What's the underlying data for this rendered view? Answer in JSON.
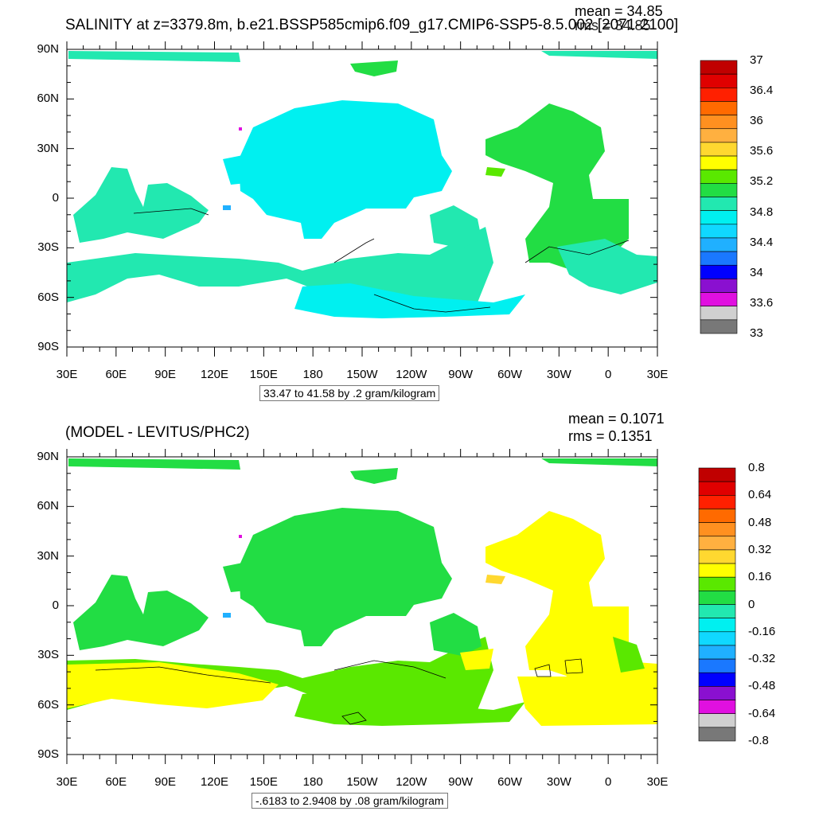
{
  "chart_data": [
    {
      "type": "heatmap",
      "title": "SALINITY at z=3379.8m, b.e21.BSSP585cmip6.f09_g17.CMIP6-SSP5-8.5.002 [2071-2100]",
      "mean_label": "mean = 34.85",
      "rms_label": "rms = 34.85",
      "range_label": "33.47 to 41.58 by .2 gram/kilogram",
      "x_ticks": [
        "30E",
        "60E",
        "90E",
        "120E",
        "150E",
        "180",
        "150W",
        "120W",
        "90W",
        "60W",
        "30W",
        "0",
        "30E"
      ],
      "y_ticks": [
        "90N",
        "60N",
        "30N",
        "0",
        "30S",
        "60S",
        "90S"
      ],
      "colorbar_labels": [
        "37",
        "36.4",
        "36",
        "35.6",
        "35.2",
        "34.8",
        "34.4",
        "34",
        "33.6",
        "33"
      ],
      "colorbar_colors": [
        "#c00000",
        "#e00000",
        "#ff2000",
        "#ff6a00",
        "#ff9020",
        "#ffb040",
        "#ffd830",
        "#ffff00",
        "#5ae800",
        "#22dd44",
        "#22e8b0",
        "#00f0f0",
        "#10d8ff",
        "#20b0ff",
        "#1a78ff",
        "#0000ff",
        "#8a10d0",
        "#e010e0",
        "#d0d0d0",
        "#787878"
      ]
    },
    {
      "type": "heatmap",
      "title": "(MODEL - LEVITUS/PHC2)",
      "mean_label": "mean = 0.1071",
      "rms_label": "rms = 0.1351",
      "range_label": "-.6183 to 2.9408 by .08 gram/kilogram",
      "x_ticks": [
        "30E",
        "60E",
        "90E",
        "120E",
        "150E",
        "180",
        "150W",
        "120W",
        "90W",
        "60W",
        "30W",
        "0",
        "30E"
      ],
      "y_ticks": [
        "90N",
        "60N",
        "30N",
        "0",
        "30S",
        "60S",
        "90S"
      ],
      "colorbar_labels": [
        "0.8",
        "0.64",
        "0.48",
        "0.32",
        "0.16",
        "0",
        "-0.16",
        "-0.32",
        "-0.48",
        "-0.64",
        "-0.8"
      ],
      "colorbar_colors": [
        "#c00000",
        "#e00000",
        "#ff2000",
        "#ff6a00",
        "#ff9020",
        "#ffb040",
        "#ffd830",
        "#ffff00",
        "#5ae800",
        "#22dd44",
        "#22e8b0",
        "#00f0f0",
        "#10d8ff",
        "#20b0ff",
        "#1a78ff",
        "#0000ff",
        "#8a10d0",
        "#e010e0",
        "#d0d0d0",
        "#787878"
      ]
    }
  ]
}
